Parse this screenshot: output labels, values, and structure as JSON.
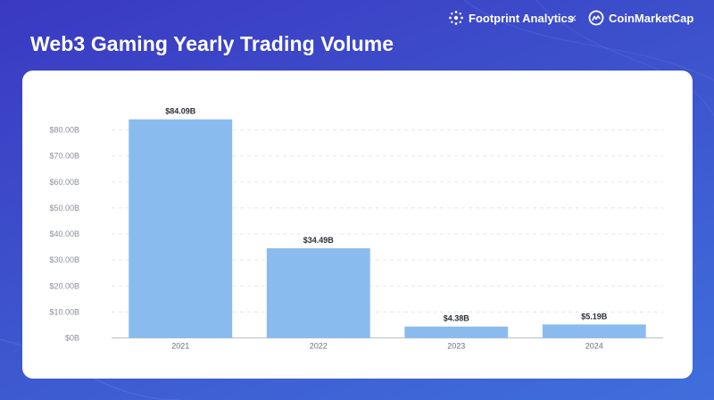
{
  "header": {
    "title": "Web3 Gaming Yearly Trading Volume",
    "brand_footprint": "Footprint Analytics",
    "brand_separator": "×",
    "brand_cmc": "CoinMarketCap"
  },
  "colors": {
    "background": "#3d4fcb",
    "bar": "#8abbee",
    "grid": "#e6e8ec"
  },
  "chart_data": {
    "type": "bar",
    "title": "Web3 Gaming Yearly Trading Volume",
    "xlabel": "",
    "ylabel": "",
    "categories": [
      "2021",
      "2022",
      "2023",
      "2024"
    ],
    "values": [
      84.09,
      34.49,
      4.38,
      5.19
    ],
    "value_labels": [
      "$84.09B",
      "$34.49B",
      "$4.38B",
      "$5.19B"
    ],
    "yticks": [
      0,
      10,
      20,
      30,
      40,
      50,
      60,
      70,
      80
    ],
    "ytick_labels": [
      "$0B",
      "$10.00B",
      "$20.00B",
      "$30.00B",
      "$40.00B",
      "$50.00B",
      "$60.00B",
      "$70.00B",
      "$80.00B"
    ],
    "ylim": [
      0,
      85
    ],
    "grid": true,
    "legend": "none"
  }
}
